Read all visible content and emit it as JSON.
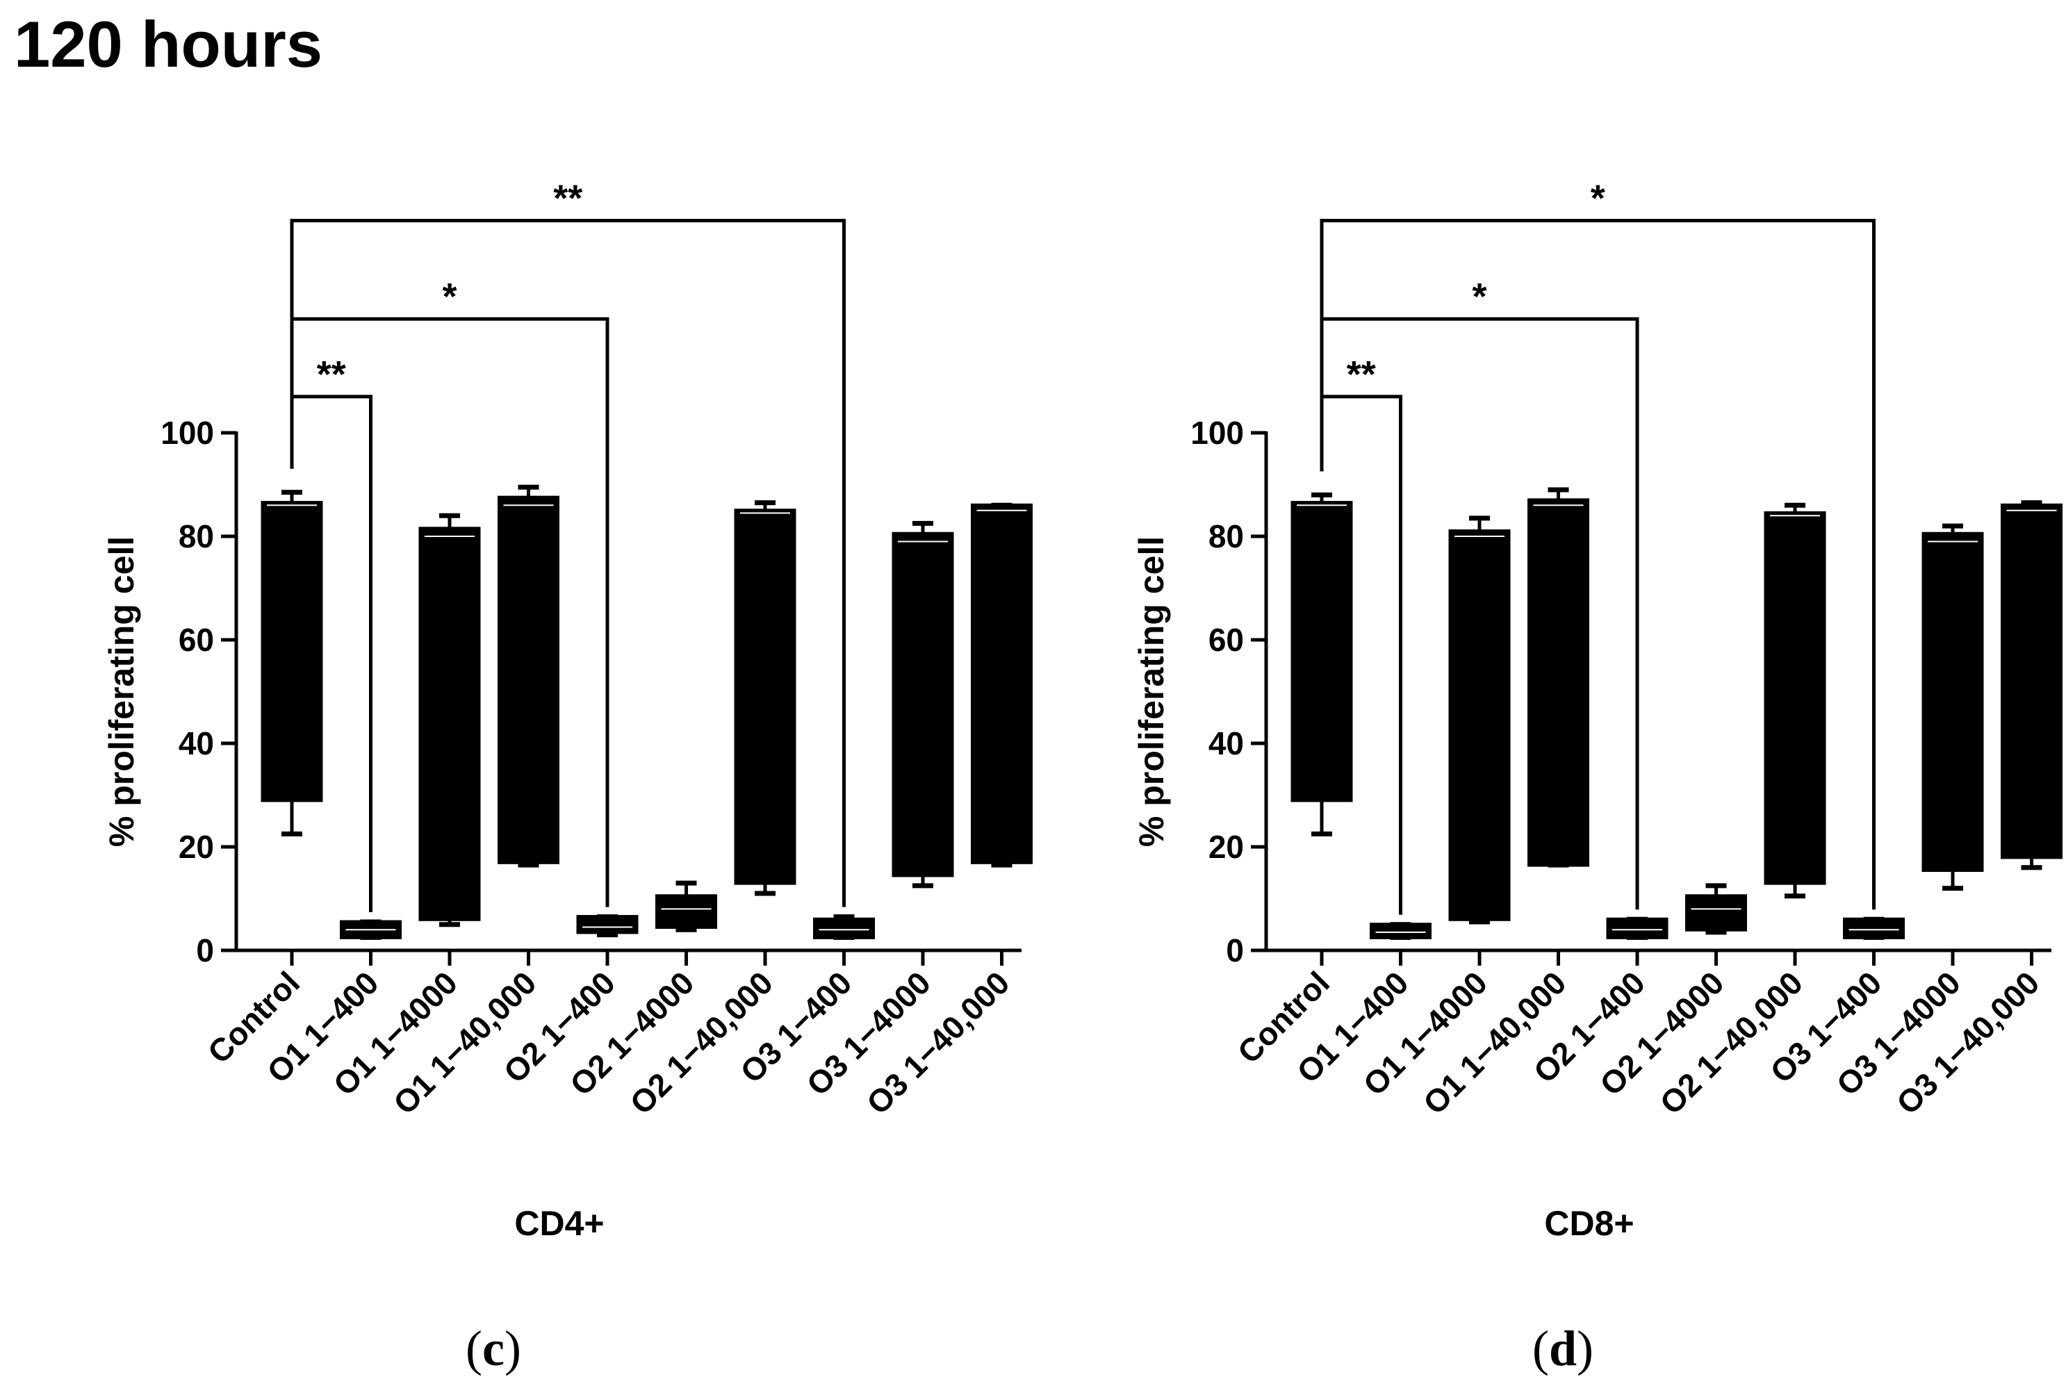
{
  "figure": {
    "title": "120 hours",
    "panels": [
      {
        "open": "(",
        "letter": "c",
        "close": ")"
      },
      {
        "open": "(",
        "letter": "d",
        "close": ")"
      }
    ]
  },
  "chart_data": [
    {
      "type": "box",
      "panel": "c",
      "title": "",
      "xlabel": "CD4+",
      "ylabel": "% proliferating cell",
      "ylim": [
        0,
        100
      ],
      "yticks": [
        0,
        20,
        40,
        60,
        80,
        100
      ],
      "categories": [
        "Control",
        "O1 1−400",
        "O1 1−4000",
        "O1 1−40,000",
        "O2 1−400",
        "O2 1−4000",
        "O2 1−40,000",
        "O3 1−400",
        "O3 1−4000",
        "O3 1−40,000"
      ],
      "boxes": [
        {
          "min": 22.5,
          "q1": 29,
          "median": 86,
          "q3": 86.5,
          "max": 88.5
        },
        {
          "min": 2.5,
          "q1": 2.5,
          "median": 4,
          "q3": 5.5,
          "max": 5.5
        },
        {
          "min": 5,
          "q1": 6,
          "median": 80,
          "q3": 81.5,
          "max": 84
        },
        {
          "min": 16.5,
          "q1": 17,
          "median": 86,
          "q3": 87.5,
          "max": 89.5
        },
        {
          "min": 3,
          "q1": 3.5,
          "median": 4.5,
          "q3": 6.5,
          "max": 6.5
        },
        {
          "min": 4,
          "q1": 4.5,
          "median": 8,
          "q3": 10.5,
          "max": 13
        },
        {
          "min": 11,
          "q1": 13,
          "median": 84.5,
          "q3": 85,
          "max": 86.5
        },
        {
          "min": 2.5,
          "q1": 2.5,
          "median": 4,
          "q3": 6,
          "max": 6.5
        },
        {
          "min": 12.5,
          "q1": 14.5,
          "median": 79,
          "q3": 80.5,
          "max": 82.5
        },
        {
          "min": 16.5,
          "q1": 17,
          "median": 85,
          "q3": 86,
          "max": 86
        }
      ],
      "significance": [
        {
          "from": "Control",
          "to": "O1 1−400",
          "label": "**",
          "y": 107
        },
        {
          "from": "Control",
          "to": "O2 1−400",
          "label": "*",
          "y": 122
        },
        {
          "from": "Control",
          "to": "O3 1−400",
          "label": "**",
          "y": 141
        }
      ]
    },
    {
      "type": "box",
      "panel": "d",
      "title": "",
      "xlabel": "CD8+",
      "ylabel": "% proliferating cell",
      "ylim": [
        0,
        100
      ],
      "yticks": [
        0,
        20,
        40,
        60,
        80,
        100
      ],
      "categories": [
        "Control",
        "O1 1−400",
        "O1 1−4000",
        "O1 1−40,000",
        "O2 1−400",
        "O2 1−4000",
        "O2 1−40,000",
        "O3 1−400",
        "O3 1−4000",
        "O3 1−40,000"
      ],
      "boxes": [
        {
          "min": 22.5,
          "q1": 29,
          "median": 86,
          "q3": 86.5,
          "max": 88
        },
        {
          "min": 2.5,
          "q1": 2.5,
          "median": 3.5,
          "q3": 5,
          "max": 5
        },
        {
          "min": 5.5,
          "q1": 6,
          "median": 80,
          "q3": 81,
          "max": 83.5
        },
        {
          "min": 16.5,
          "q1": 16.5,
          "median": 86,
          "q3": 87,
          "max": 89
        },
        {
          "min": 2.5,
          "q1": 2.5,
          "median": 4,
          "q3": 6,
          "max": 6
        },
        {
          "min": 3.5,
          "q1": 4,
          "median": 8,
          "q3": 10.5,
          "max": 12.5
        },
        {
          "min": 10.5,
          "q1": 13,
          "median": 84,
          "q3": 84.5,
          "max": 86
        },
        {
          "min": 2.5,
          "q1": 2.5,
          "median": 4,
          "q3": 6,
          "max": 6
        },
        {
          "min": 12,
          "q1": 15.5,
          "median": 79,
          "q3": 80.5,
          "max": 82
        },
        {
          "min": 16,
          "q1": 18,
          "median": 85,
          "q3": 86,
          "max": 86.5
        }
      ],
      "significance": [
        {
          "from": "Control",
          "to": "O1 1−400",
          "label": "**",
          "y": 107
        },
        {
          "from": "Control",
          "to": "O2 1−400",
          "label": "*",
          "y": 122
        },
        {
          "from": "Control",
          "to": "O3 1−400",
          "label": "*",
          "y": 141
        }
      ]
    }
  ]
}
